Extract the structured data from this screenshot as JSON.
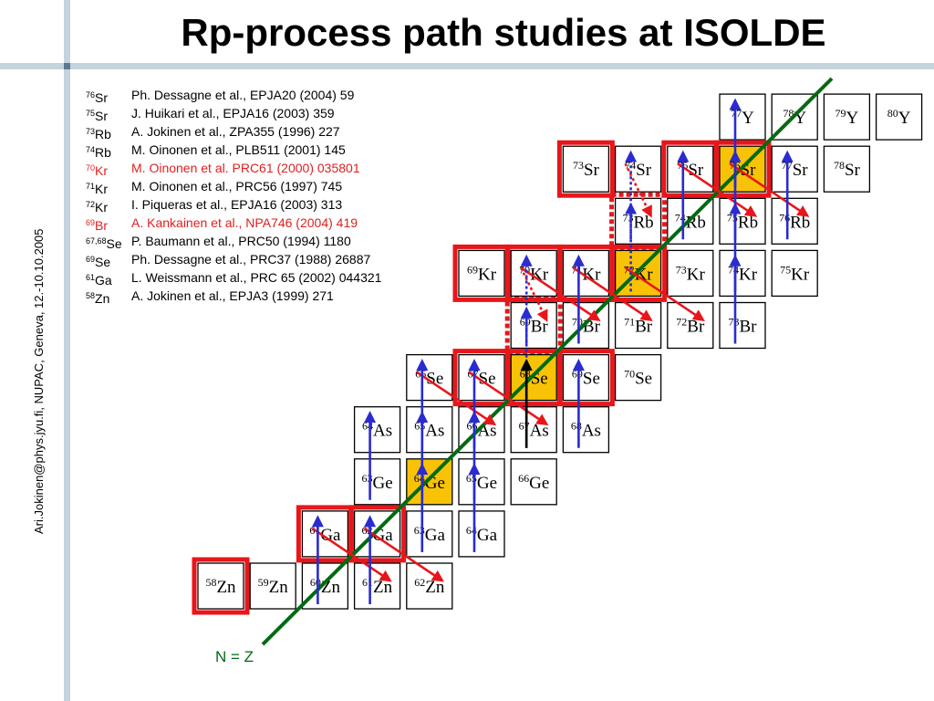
{
  "title": "Rp-process path studies at ISOLDE",
  "footer_vertical": "Ari.Jokinen@phys.jyu.fi, NUPAC, Geneva, 12.-10.10.2005",
  "references": [
    {
      "mass": "76",
      "element": "Sr",
      "text": "Ph. Dessagne et al., EPJA20 (2004) 59",
      "highlight": false
    },
    {
      "mass": "75",
      "element": "Sr",
      "text": "J. Huikari et al., EPJA16 (2003) 359",
      "highlight": false
    },
    {
      "mass": "73",
      "element": "Rb",
      "text": "A. Jokinen et al., ZPA355 (1996) 227",
      "highlight": false
    },
    {
      "mass": "74",
      "element": "Rb",
      "text": "M. Oinonen et al., PLB511 (2001) 145",
      "highlight": false
    },
    {
      "mass": "70",
      "element": "Kr",
      "text": "M. Oinonen et al. PRC61 (2000) 035801",
      "highlight": true
    },
    {
      "mass": "71",
      "element": "Kr",
      "text": "M. Oinonen et al., PRC56 (1997) 745",
      "highlight": false
    },
    {
      "mass": "72",
      "element": "Kr",
      "text": "I. Piqueras et al., EPJA16 (2003) 313",
      "highlight": false
    },
    {
      "mass": "69",
      "element": "Br",
      "text": "A. Kankainen et al., NPA746 (2004) 419",
      "highlight": true
    },
    {
      "mass": "67,68",
      "element": "Se",
      "text": "P. Baumann et al., PRC50 (1994) 1180",
      "highlight": false,
      "inline": true
    },
    {
      "mass": "69",
      "element": "Se",
      "text": "Ph. Dessagne et al., PRC37 (1988) 26887",
      "highlight": false
    },
    {
      "mass": "61",
      "element": "Ga",
      "text": "L. Weissmann et al., PRC 65 (2002) 044321",
      "highlight": false
    },
    {
      "mass": "58",
      "element": "Zn",
      "text": "A. Jokinen et al., EPJA3 (1999) 271",
      "highlight": false
    }
  ],
  "nz_label": "N = Z",
  "colors": {
    "red_border": "#e8161b",
    "filled": "#f8c306",
    "line_nz": "#006a12",
    "arrow_blue": "#2a2bd0",
    "arrow_red": "#e8161b",
    "text_red": "#e0201f",
    "deco_bar": "#c4d3dc"
  },
  "chart_data": {
    "type": "nuclide-chart",
    "cells": [
      {
        "mass": "77",
        "el": "Y",
        "style": "normal"
      },
      {
        "mass": "78",
        "el": "Y",
        "style": "normal"
      },
      {
        "mass": "79",
        "el": "Y",
        "style": "normal"
      },
      {
        "mass": "80",
        "el": "Y",
        "style": "normal"
      },
      {
        "mass": "73",
        "el": "Sr",
        "style": "red"
      },
      {
        "mass": "74",
        "el": "Sr",
        "style": "normal"
      },
      {
        "mass": "75",
        "el": "Sr",
        "style": "red"
      },
      {
        "mass": "76",
        "el": "Sr",
        "style": "red-filled"
      },
      {
        "mass": "77",
        "el": "Sr",
        "style": "normal"
      },
      {
        "mass": "78",
        "el": "Sr",
        "style": "normal"
      },
      {
        "mass": "73",
        "el": "Rb",
        "style": "dotted"
      },
      {
        "mass": "74",
        "el": "Rb",
        "style": "normal"
      },
      {
        "mass": "75",
        "el": "Rb",
        "style": "normal"
      },
      {
        "mass": "76",
        "el": "Rb",
        "style": "normal"
      },
      {
        "mass": "69",
        "el": "Kr",
        "style": "red"
      },
      {
        "mass": "70",
        "el": "Kr",
        "style": "red"
      },
      {
        "mass": "71",
        "el": "Kr",
        "style": "red"
      },
      {
        "mass": "72",
        "el": "Kr",
        "style": "red-filled"
      },
      {
        "mass": "73",
        "el": "Kr",
        "style": "normal"
      },
      {
        "mass": "74",
        "el": "Kr",
        "style": "normal"
      },
      {
        "mass": "75",
        "el": "Kr",
        "style": "normal"
      },
      {
        "mass": "69",
        "el": "Br",
        "style": "dotted"
      },
      {
        "mass": "70",
        "el": "Br",
        "style": "normal"
      },
      {
        "mass": "71",
        "el": "Br",
        "style": "normal"
      },
      {
        "mass": "72",
        "el": "Br",
        "style": "normal"
      },
      {
        "mass": "73",
        "el": "Br",
        "style": "normal"
      },
      {
        "mass": "66",
        "el": "Se",
        "style": "normal"
      },
      {
        "mass": "67",
        "el": "Se",
        "style": "red"
      },
      {
        "mass": "68",
        "el": "Se",
        "style": "red-filled"
      },
      {
        "mass": "69",
        "el": "Se",
        "style": "red"
      },
      {
        "mass": "70",
        "el": "Se",
        "style": "normal"
      },
      {
        "mass": "64",
        "el": "As",
        "style": "normal"
      },
      {
        "mass": "65",
        "el": "As",
        "style": "normal"
      },
      {
        "mass": "66",
        "el": "As",
        "style": "normal"
      },
      {
        "mass": "67",
        "el": "As",
        "style": "normal"
      },
      {
        "mass": "68",
        "el": "As",
        "style": "normal"
      },
      {
        "mass": "63",
        "el": "Ge",
        "style": "normal"
      },
      {
        "mass": "64",
        "el": "Ge",
        "style": "filled"
      },
      {
        "mass": "65",
        "el": "Ge",
        "style": "normal"
      },
      {
        "mass": "66",
        "el": "Ge",
        "style": "normal"
      },
      {
        "mass": "61",
        "el": "Ga",
        "style": "red"
      },
      {
        "mass": "62",
        "el": "Ga",
        "style": "red"
      },
      {
        "mass": "63",
        "el": "Ga",
        "style": "normal"
      },
      {
        "mass": "64",
        "el": "Ga",
        "style": "normal"
      },
      {
        "mass": "58",
        "el": "Zn",
        "style": "red"
      },
      {
        "mass": "59",
        "el": "Zn",
        "style": "normal"
      },
      {
        "mass": "60",
        "el": "Zn",
        "style": "normal"
      },
      {
        "mass": "61",
        "el": "Zn",
        "style": "normal"
      },
      {
        "mass": "62",
        "el": "Zn",
        "style": "normal"
      }
    ],
    "blue_arrows": [
      {
        "from": "60Zn",
        "to": "61Ga"
      },
      {
        "from": "61Zn",
        "to": "62Ga"
      },
      {
        "from": "63Ga",
        "to": "64Ge"
      },
      {
        "from": "64Ga",
        "to": "65Ge"
      },
      {
        "from": "63Ge",
        "to": "64As"
      },
      {
        "from": "64Ge",
        "to": "65As"
      },
      {
        "from": "65Ge",
        "to": "66As"
      },
      {
        "from": "65As",
        "to": "66Se"
      },
      {
        "from": "67As",
        "to": "68Se"
      },
      {
        "from": "68As",
        "to": "69Se"
      },
      {
        "from": "66As",
        "to": "67Se"
      },
      {
        "from": "70Br",
        "to": "71Kr"
      },
      {
        "from": "73Br",
        "to": "74Kr"
      },
      {
        "from": "74Kr",
        "to": "75Rb"
      },
      {
        "from": "74Rb",
        "to": "75Sr"
      },
      {
        "from": "75Rb",
        "to": "76Sr"
      },
      {
        "from": "76Rb",
        "to": "77Sr"
      },
      {
        "from": "76Sr",
        "to": "77Y"
      }
    ],
    "blue_dotted_arrows": [
      {
        "from": "68Se",
        "to": "69Br"
      },
      {
        "from": "69Br",
        "to": "70Kr"
      },
      {
        "from": "72Kr",
        "to": "73Rb"
      },
      {
        "from": "73Rb",
        "to": "74Sr"
      }
    ],
    "black_arrows": [
      {
        "from": "67As",
        "to": "68Se"
      }
    ],
    "red_arrows": [
      {
        "from": "61Ga",
        "to": "61Zn"
      },
      {
        "from": "62Ga",
        "to": "62Zn"
      },
      {
        "from": "66Se",
        "to": "66As"
      },
      {
        "from": "67Se",
        "to": "67As"
      },
      {
        "from": "69Se",
        "to": "69As"
      },
      {
        "from": "70Kr",
        "to": "70Br"
      },
      {
        "from": "71Kr",
        "to": "71Br"
      },
      {
        "from": "72Kr",
        "to": "72Br"
      },
      {
        "from": "75Sr",
        "to": "75Rb"
      },
      {
        "from": "76Sr",
        "to": "76Rb"
      }
    ],
    "red_dotted_arrows": [
      {
        "from": "70Kr",
        "to": "69Br"
      },
      {
        "from": "74Sr",
        "to": "73Rb"
      }
    ],
    "nz_line": true
  }
}
